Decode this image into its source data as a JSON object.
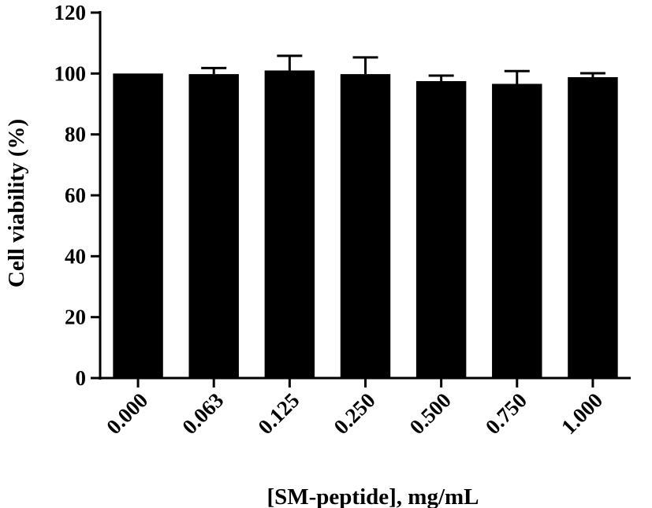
{
  "chart_data": {
    "type": "bar",
    "title": "",
    "xlabel": "[SM-peptide], mg/mL",
    "ylabel": "Cell viability (%)",
    "ylim": [
      0,
      120
    ],
    "yticks": [
      0,
      20,
      40,
      60,
      80,
      100,
      120
    ],
    "categories": [
      "0.000",
      "0.063",
      "0.125",
      "0.250",
      "0.500",
      "0.750",
      "1.000"
    ],
    "values": [
      100,
      99.8,
      101,
      99.8,
      97.5,
      96.6,
      98.8
    ],
    "errors": [
      0,
      2,
      4.8,
      5.5,
      1.8,
      4.2,
      1.3
    ],
    "bar_color": "#000000",
    "grid": false,
    "legend": "none"
  }
}
